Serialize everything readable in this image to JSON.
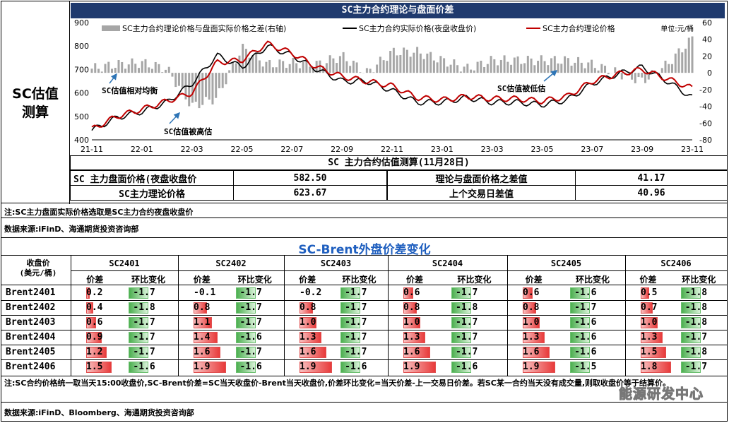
{
  "side_label": [
    "SC估值",
    "测算"
  ],
  "chart_title": "SC主力合约理论与盘面价差",
  "legend": {
    "diff": "SC主力合约理论价格与盘面实际价格之差(右轴)",
    "actual": "SC主力合约实际价格(夜盘收盘价)",
    "theory": "SC主力合约理论价格",
    "unit": "单位:元/桶"
  },
  "annotations": {
    "balanced": "SC估值相对均衡",
    "over": "SC估值被高估",
    "under": "SC估值被低估"
  },
  "chart_data": {
    "type": "line",
    "x": [
      "21-11",
      "21-12",
      "22-01",
      "22-02",
      "22-03",
      "22-04",
      "22-05",
      "22-06",
      "22-07",
      "22-08",
      "22-09",
      "22-10",
      "22-11",
      "22-12",
      "23-01",
      "23-02",
      "23-03",
      "23-04",
      "23-05",
      "23-06",
      "23-07",
      "23-08",
      "23-09",
      "23-10",
      "23-11"
    ],
    "x_ticks": [
      "21-11",
      "22-01",
      "22-03",
      "22-05",
      "22-07",
      "22-09",
      "22-11",
      "23-01",
      "23-03",
      "23-05",
      "23-07",
      "23-09",
      "23-11"
    ],
    "y_left_ticks": [
      400,
      500,
      600,
      700,
      800,
      900
    ],
    "y_right_ticks": [
      -80,
      -60,
      -40,
      -20,
      0,
      20,
      40,
      60
    ],
    "ylim": [
      400,
      900
    ],
    "y2lim": [
      -80,
      60
    ],
    "series": [
      {
        "name": "SC主力合约实际价格(夜盘收盘价)",
        "color": "#000000",
        "values": [
          440,
          495,
          520,
          560,
          640,
          760,
          710,
          800,
          760,
          700,
          650,
          650,
          610,
          560,
          560,
          580,
          560,
          560,
          550,
          570,
          640,
          680,
          710,
          650,
          580
        ]
      },
      {
        "name": "SC主力合约理论价格",
        "color": "#c00000",
        "values": [
          445,
          500,
          530,
          565,
          600,
          730,
          740,
          810,
          770,
          710,
          670,
          650,
          630,
          580,
          570,
          585,
          575,
          575,
          565,
          585,
          650,
          680,
          700,
          660,
          620
        ]
      },
      {
        "name": "SC主力合约理论价格与盘面实际价格之差(右轴)",
        "color": "#a6a6a6",
        "type": "bar",
        "values": [
          5,
          10,
          12,
          5,
          -40,
          -30,
          30,
          10,
          12,
          10,
          20,
          0,
          25,
          25,
          15,
          5,
          15,
          15,
          15,
          15,
          10,
          0,
          -10,
          10,
          41
        ]
      }
    ]
  },
  "valuation": {
    "title": "SC 主力合约估值测算(11月28日)",
    "rows": [
      {
        "label": "SC 主力盘面价格(夜盘收盘价",
        "value": "582.50",
        "label2": "理论与盘面价格之差值",
        "value2": "41.17"
      },
      {
        "label": "SC主力理论价格",
        "value": "623.67",
        "label2": "上个交易日差值",
        "value2": "40.96"
      }
    ]
  },
  "note1": "注:SC主力盘面实际价格选取是SC主力合约夜盘收盘价",
  "source1": "数据来源:iFinD、海通期货投资咨询部",
  "brent": {
    "title": "SC-Brent外盘价差变化",
    "corner": [
      "收盘价",
      "(美元/桶)"
    ],
    "contracts": [
      "SC2401",
      "SC2402",
      "SC2403",
      "SC2404",
      "SC2405",
      "SC2406"
    ],
    "sub": [
      "价差",
      "环比变化"
    ],
    "rows": [
      "Brent2401",
      "Brent2402",
      "Brent2403",
      "Brent2404",
      "Brent2405",
      "Brent2406"
    ],
    "spread": [
      [
        "0.2",
        "-0.1",
        "-0.2",
        "0.6",
        "0.6",
        "0.5"
      ],
      [
        "0.4",
        "0.8",
        "0.8",
        "0.8",
        "0.8",
        "0.7"
      ],
      [
        "0.6",
        "1.1",
        "1.0",
        "1.0",
        "1.0",
        "1.0"
      ],
      [
        "0.9",
        "1.4",
        "1.3",
        "1.3",
        "1.3",
        "1.3"
      ],
      [
        "1.2",
        "1.6",
        "1.6",
        "1.6",
        "1.6",
        "1.5"
      ],
      [
        "1.5",
        "1.9",
        "1.9",
        "1.9",
        "1.9",
        "1.8"
      ]
    ],
    "change": [
      [
        "-1.7",
        "-1.7",
        "-1.7",
        "-1.7",
        "-1.6",
        "-1.8"
      ],
      [
        "-1.8",
        "-1.7",
        "-1.7",
        "-1.8",
        "-1.7",
        "-1.8"
      ],
      [
        "-1.7",
        "-1.7",
        "-1.7",
        "-1.7",
        "-1.6",
        "-1.8"
      ],
      [
        "-1.7",
        "-1.6",
        "-1.7",
        "-1.7",
        "-1.6",
        "-1.7"
      ],
      [
        "-1.7",
        "-1.7",
        "-1.7",
        "-1.7",
        "-1.6",
        "-1.8"
      ],
      [
        "-1.6",
        "-1.6",
        "-1.6",
        "-1.6",
        "-1.5",
        "-1.7"
      ]
    ]
  },
  "note2": "注:SC合约价格统一取当天15:00收盘价,SC-Brent价差=SC当天收盘价-Brent当天收盘价,价差环比变化=当天价差-上一交易日价差。若SC某一合约当天没有成交量,则取收盘价等于结算价。",
  "source2": "数据来源:iFinD、Bloomberg、海通期货投资咨询部",
  "watermark": "能源研发中心"
}
